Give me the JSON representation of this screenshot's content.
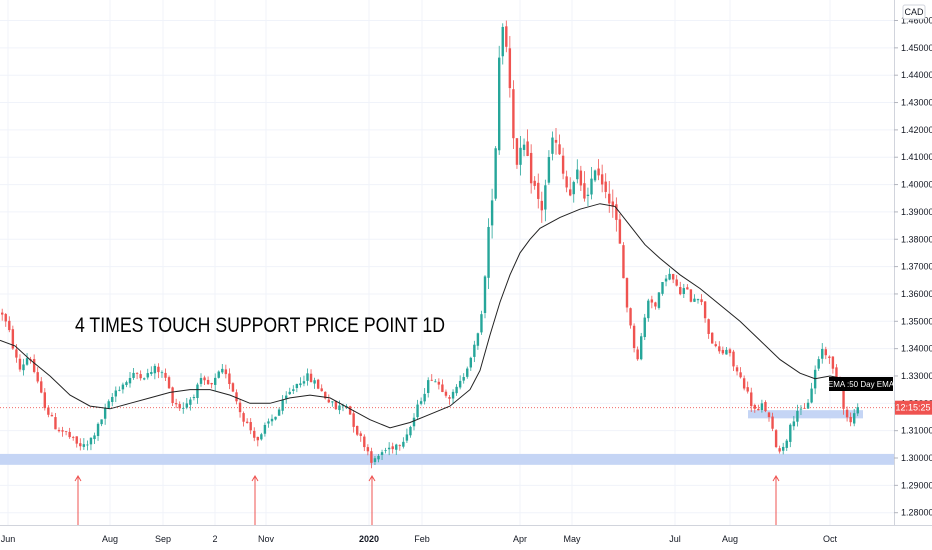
{
  "chart_data": {
    "type": "candlestick",
    "currency": "CAD",
    "annotation": "4 TIMES TOUCH SUPPORT PRICE POINT 1D",
    "y_ticks": [
      "1.46000",
      "1.45000",
      "1.44000",
      "1.43000",
      "1.42000",
      "1.41000",
      "1.40000",
      "1.39000",
      "1.38000",
      "1.37000",
      "1.36000",
      "1.35000",
      "1.34000",
      "1.33000",
      "1.32000",
      "1.31000",
      "1.30000",
      "1.29000",
      "1.28000"
    ],
    "ylim": [
      1.2755,
      1.4675
    ],
    "x_labels": [
      {
        "label": "Jun",
        "bold": false
      },
      {
        "label": "Aug",
        "bold": false
      },
      {
        "label": "Sep",
        "bold": false
      },
      {
        "label": "2",
        "bold": false
      },
      {
        "label": "Nov",
        "bold": false
      },
      {
        "label": "2020",
        "bold": true
      },
      {
        "label": "Feb",
        "bold": false
      },
      {
        "label": "Apr",
        "bold": false
      },
      {
        "label": "May",
        "bold": false
      },
      {
        "label": "Jul",
        "bold": false
      },
      {
        "label": "Aug",
        "bold": false
      },
      {
        "label": "Oct",
        "bold": false
      }
    ],
    "ema_label": "EMA :50 Day EMA",
    "ema_value": 1.328,
    "time_label": "12:15:25",
    "current_price": 1.3184,
    "support_zone": [
      1.2975,
      1.3015
    ],
    "recent_zone": [
      1.3145,
      1.3175
    ],
    "touch_arrows": 4,
    "price_path": [
      [
        0,
        1.354
      ],
      [
        8,
        1.346
      ],
      [
        18,
        1.332
      ],
      [
        28,
        1.338
      ],
      [
        38,
        1.325
      ],
      [
        45,
        1.318
      ],
      [
        55,
        1.311
      ],
      [
        65,
        1.309
      ],
      [
        75,
        1.305
      ],
      [
        85,
        1.304
      ],
      [
        95,
        1.31
      ],
      [
        105,
        1.318
      ],
      [
        115,
        1.325
      ],
      [
        125,
        1.328
      ],
      [
        135,
        1.331
      ],
      [
        145,
        1.33
      ],
      [
        155,
        1.333
      ],
      [
        165,
        1.329
      ],
      [
        170,
        1.322
      ],
      [
        180,
        1.318
      ],
      [
        190,
        1.322
      ],
      [
        200,
        1.328
      ],
      [
        210,
        1.326
      ],
      [
        220,
        1.332
      ],
      [
        230,
        1.327
      ],
      [
        240,
        1.316
      ],
      [
        250,
        1.31
      ],
      [
        258,
        1.306
      ],
      [
        265,
        1.312
      ],
      [
        275,
        1.316
      ],
      [
        285,
        1.322
      ],
      [
        295,
        1.327
      ],
      [
        305,
        1.33
      ],
      [
        315,
        1.327
      ],
      [
        325,
        1.322
      ],
      [
        335,
        1.318
      ],
      [
        345,
        1.32
      ],
      [
        355,
        1.31
      ],
      [
        365,
        1.304
      ],
      [
        372,
        1.298
      ],
      [
        380,
        1.302
      ],
      [
        390,
        1.304
      ],
      [
        400,
        1.306
      ],
      [
        410,
        1.312
      ],
      [
        420,
        1.322
      ],
      [
        430,
        1.33
      ],
      [
        440,
        1.326
      ],
      [
        450,
        1.322
      ],
      [
        460,
        1.328
      ],
      [
        468,
        1.336
      ],
      [
        476,
        1.343
      ],
      [
        482,
        1.358
      ],
      [
        488,
        1.385
      ],
      [
        494,
        1.41
      ],
      [
        497,
        1.44
      ],
      [
        500,
        1.462
      ],
      [
        504,
        1.455
      ],
      [
        508,
        1.44
      ],
      [
        512,
        1.42
      ],
      [
        516,
        1.405
      ],
      [
        522,
        1.415
      ],
      [
        528,
        1.405
      ],
      [
        534,
        1.398
      ],
      [
        540,
        1.39
      ],
      [
        546,
        1.405
      ],
      [
        552,
        1.418
      ],
      [
        558,
        1.41
      ],
      [
        564,
        1.4
      ],
      [
        570,
        1.395
      ],
      [
        576,
        1.404
      ],
      [
        582,
        1.398
      ],
      [
        588,
        1.394
      ],
      [
        594,
        1.408
      ],
      [
        600,
        1.402
      ],
      [
        606,
        1.398
      ],
      [
        612,
        1.392
      ],
      [
        618,
        1.38
      ],
      [
        624,
        1.36
      ],
      [
        630,
        1.346
      ],
      [
        636,
        1.336
      ],
      [
        642,
        1.348
      ],
      [
        648,
        1.36
      ],
      [
        654,
        1.355
      ],
      [
        660,
        1.362
      ],
      [
        666,
        1.368
      ],
      [
        672,
        1.365
      ],
      [
        678,
        1.36
      ],
      [
        684,
        1.362
      ],
      [
        690,
        1.358
      ],
      [
        696,
        1.36
      ],
      [
        702,
        1.355
      ],
      [
        708,
        1.345
      ],
      [
        714,
        1.34
      ],
      [
        720,
        1.338
      ],
      [
        726,
        1.34
      ],
      [
        732,
        1.334
      ],
      [
        738,
        1.33
      ],
      [
        744,
        1.326
      ],
      [
        750,
        1.32
      ],
      [
        756,
        1.316
      ],
      [
        762,
        1.32
      ],
      [
        768,
        1.314
      ],
      [
        774,
        1.306
      ],
      [
        778,
        1.302
      ],
      [
        784,
        1.306
      ],
      [
        790,
        1.312
      ],
      [
        796,
        1.318
      ],
      [
        802,
        1.316
      ],
      [
        808,
        1.322
      ],
      [
        814,
        1.332
      ],
      [
        820,
        1.34
      ],
      [
        826,
        1.338
      ],
      [
        832,
        1.332
      ],
      [
        838,
        1.328
      ],
      [
        843,
        1.318
      ],
      [
        848,
        1.312
      ],
      [
        853,
        1.316
      ],
      [
        858,
        1.318
      ]
    ],
    "ema_path": [
      [
        0,
        1.343
      ],
      [
        15,
        1.341
      ],
      [
        30,
        1.336
      ],
      [
        50,
        1.33
      ],
      [
        70,
        1.323
      ],
      [
        90,
        1.319
      ],
      [
        110,
        1.318
      ],
      [
        130,
        1.32
      ],
      [
        150,
        1.322
      ],
      [
        170,
        1.324
      ],
      [
        190,
        1.325
      ],
      [
        210,
        1.325
      ],
      [
        230,
        1.323
      ],
      [
        250,
        1.32
      ],
      [
        270,
        1.32
      ],
      [
        290,
        1.322
      ],
      [
        310,
        1.323
      ],
      [
        330,
        1.322
      ],
      [
        350,
        1.318
      ],
      [
        370,
        1.314
      ],
      [
        390,
        1.311
      ],
      [
        410,
        1.313
      ],
      [
        430,
        1.316
      ],
      [
        450,
        1.319
      ],
      [
        470,
        1.325
      ],
      [
        480,
        1.332
      ],
      [
        490,
        1.345
      ],
      [
        500,
        1.357
      ],
      [
        510,
        1.367
      ],
      [
        520,
        1.375
      ],
      [
        530,
        1.38
      ],
      [
        540,
        1.384
      ],
      [
        560,
        1.388
      ],
      [
        580,
        1.391
      ],
      [
        600,
        1.393
      ],
      [
        615,
        1.392
      ],
      [
        630,
        1.385
      ],
      [
        645,
        1.378
      ],
      [
        660,
        1.373
      ],
      [
        680,
        1.367
      ],
      [
        700,
        1.362
      ],
      [
        720,
        1.356
      ],
      [
        740,
        1.35
      ],
      [
        760,
        1.343
      ],
      [
        780,
        1.336
      ],
      [
        800,
        1.331
      ],
      [
        815,
        1.329
      ],
      [
        830,
        1.33
      ],
      [
        845,
        1.329
      ],
      [
        858,
        1.328
      ]
    ]
  }
}
